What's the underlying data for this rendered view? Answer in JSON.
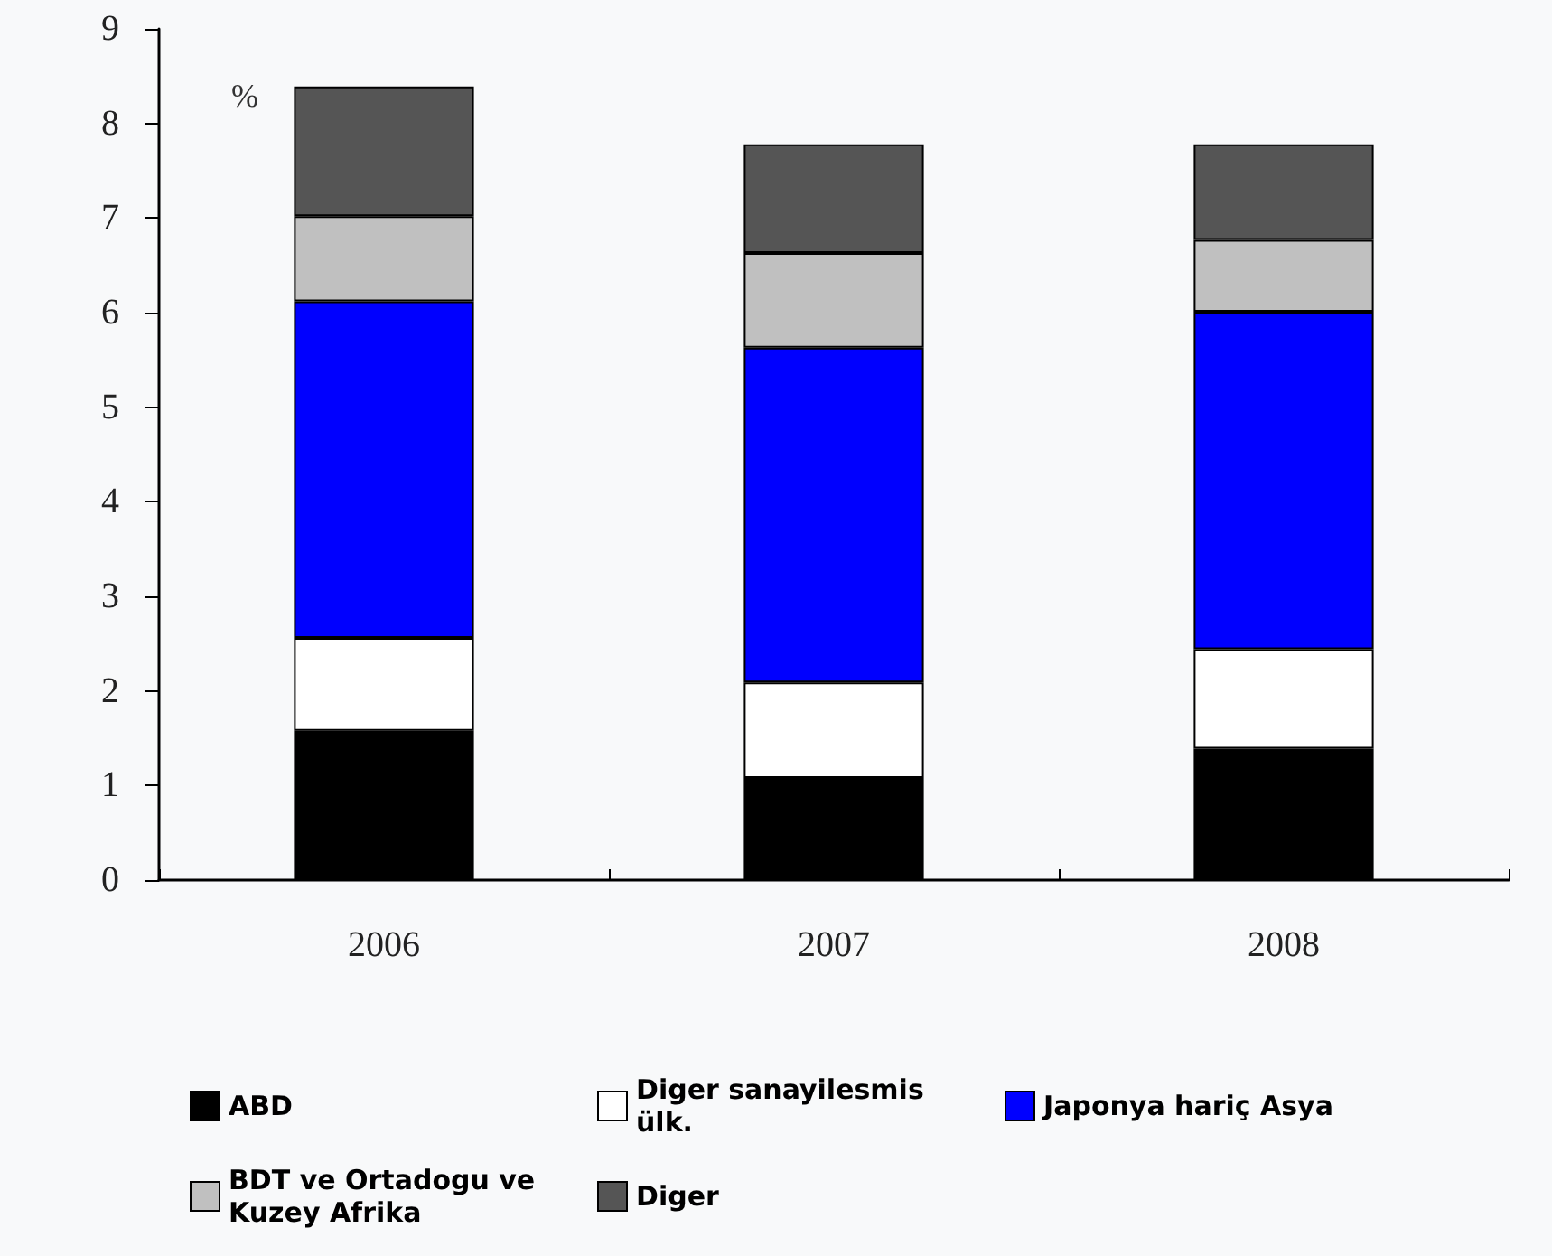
{
  "chart_data": {
    "type": "bar",
    "stacked": true,
    "ylabel": "%",
    "categories": [
      "2006",
      "2007",
      "2008"
    ],
    "series": [
      {
        "name": "ABD",
        "color": "#000000",
        "values": [
          1.58,
          1.08,
          1.39
        ]
      },
      {
        "name": "Diger sanayilesmis ülk.",
        "color": "#ffffff",
        "values": [
          0.98,
          1.01,
          1.05
        ]
      },
      {
        "name": "Japonya hariç Asya",
        "color": "#0000ff",
        "values": [
          3.56,
          3.54,
          3.57
        ]
      },
      {
        "name": "BDT ve Ortadogu ve Kuzey Afrika",
        "color": "#c0c0c0",
        "values": [
          0.9,
          1.0,
          0.76
        ]
      },
      {
        "name": "Diger",
        "color": "#555555",
        "values": [
          1.37,
          1.15,
          1.01
        ]
      }
    ],
    "ylim": [
      0,
      9
    ],
    "yticks": [
      0,
      1,
      2,
      3,
      4,
      5,
      6,
      7,
      8,
      9
    ],
    "grid": false,
    "legend": "bottom"
  }
}
